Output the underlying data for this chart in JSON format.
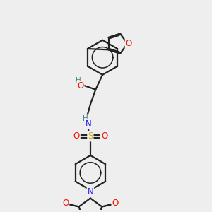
{
  "bg_color": "#eeeeee",
  "bond_color": "#222222",
  "bond_width": 1.6,
  "atom_colors": {
    "O": "#ee1100",
    "N": "#2222ee",
    "S": "#ccaa00",
    "H": "#448888",
    "C": "#222222"
  },
  "font_size": 8.5,
  "font_size_small": 7.5,
  "xlim": [
    0,
    10
  ],
  "ylim": [
    0,
    12
  ]
}
